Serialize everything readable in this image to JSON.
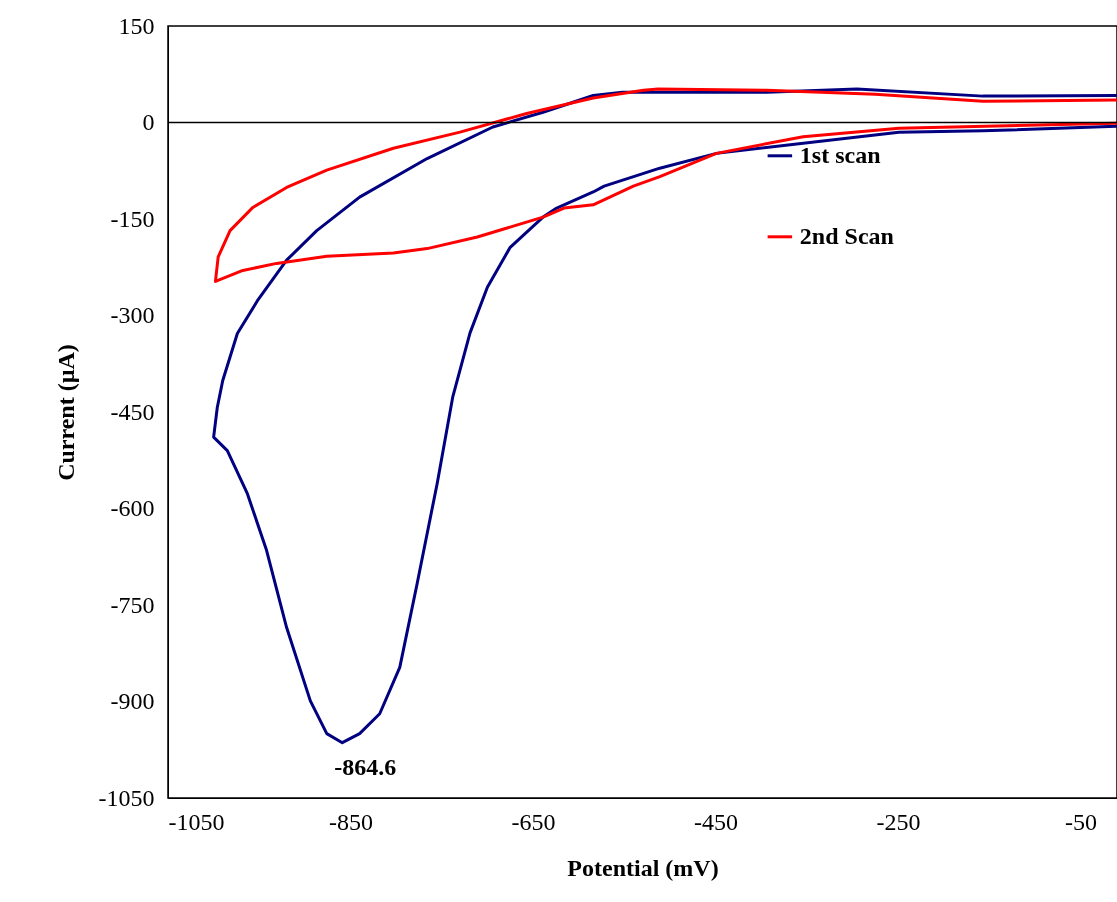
{
  "chart_data": {
    "type": "line",
    "xlabel": "Potential (mV)",
    "ylabel": "Current (µA)",
    "xlim": [
      -1050,
      -10
    ],
    "xticks": [
      -1050,
      -850,
      -650,
      -450,
      -250,
      -50
    ],
    "ylim": [
      -1050,
      150
    ],
    "yticks": [
      150,
      0,
      -150,
      -300,
      -450,
      -600,
      -750,
      -900,
      -1050
    ],
    "grid": false,
    "legend": "right",
    "marker": "none",
    "line_style": "solid",
    "ref_lines": [
      {
        "axis": "y",
        "value": 0,
        "color": "#000000"
      }
    ],
    "annotations": [
      {
        "text": "-864.6",
        "x": -864.6,
        "y": -963
      }
    ],
    "series": [
      {
        "name": "1st scan",
        "color": "#000080",
        "x": [
          -11,
          -157,
          -249,
          -449,
          -511,
          -572,
          -584,
          -624,
          -639,
          -675,
          -700,
          -719,
          -738,
          -755,
          -777,
          -796,
          -818,
          -840,
          -859,
          -876,
          -894,
          -920,
          -942,
          -963,
          -985,
          -1000,
          -996,
          -990,
          -974,
          -952,
          -920,
          -887,
          -840,
          -766,
          -694,
          -639,
          -584,
          -552,
          -529,
          -394,
          -295,
          -157,
          -11
        ],
        "values": [
          -6,
          -13,
          -15,
          -48,
          -71,
          -99,
          -108,
          -133,
          -147,
          -194,
          -256,
          -327,
          -427,
          -561,
          -717,
          -847,
          -919,
          -950,
          -964,
          -950,
          -899,
          -785,
          -665,
          -577,
          -510,
          -489,
          -443,
          -401,
          -328,
          -277,
          -214,
          -168,
          -116,
          -56,
          -7,
          16,
          42,
          47,
          47,
          47,
          52,
          41,
          42
        ]
      },
      {
        "name": "2nd Scan",
        "color": "#ff0000",
        "x": [
          -11,
          -249,
          -354,
          -449,
          -511,
          -540,
          -584,
          -616,
          -639,
          -711,
          -766,
          -803,
          -876,
          -931,
          -968,
          -998,
          -995,
          -982,
          -957,
          -920,
          -876,
          -803,
          -730,
          -657,
          -584,
          -529,
          -513,
          -394,
          -275,
          -157,
          -11
        ],
        "values": [
          -1,
          -9,
          -22,
          -48,
          -84,
          -99,
          -128,
          -133,
          -147,
          -178,
          -196,
          -203,
          -208,
          -219,
          -230,
          -247,
          -209,
          -168,
          -132,
          -101,
          -74,
          -40,
          -15,
          14,
          38,
          50,
          52,
          50,
          44,
          33,
          35
        ]
      }
    ]
  }
}
